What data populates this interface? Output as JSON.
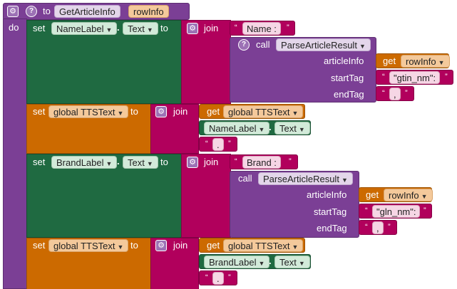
{
  "colors": {
    "procedure": "#7b3f95",
    "text_block": "#b1005c",
    "component": "#1f6a41",
    "variable": "#cc6a00"
  },
  "proc": {
    "to": "to",
    "name": "GetArticleInfo",
    "param": "rowInfo",
    "do": "do",
    "gear_icon": "gear-icon",
    "help_icon": "question-mark-icon"
  },
  "set1": {
    "set": "set",
    "component": "NameLabel",
    "property": "Text",
    "to": "to",
    "join": "join",
    "str1": "Name :",
    "call": "call",
    "proc": "ParseArticleResult",
    "p1": "articleInfo",
    "p2": "startTag",
    "p3": "endTag",
    "get": "get",
    "get_var": "rowInfo",
    "start_tag": "\"gtin_nm\":",
    "end_tag": ","
  },
  "set2": {
    "set": "set",
    "var": "global TTSText",
    "to": "to",
    "join": "join",
    "get": "get",
    "get_var": "global TTSText",
    "component": "NameLabel",
    "property": "Text",
    "str": "."
  },
  "set3": {
    "set": "set",
    "component": "BrandLabel",
    "property": "Text",
    "to": "to",
    "join": "join",
    "str1": "Brand :",
    "call": "call",
    "proc": "ParseArticleResult",
    "p1": "articleInfo",
    "p2": "startTag",
    "p3": "endTag",
    "get": "get",
    "get_var": "rowInfo",
    "start_tag": "\"gln_nm\":",
    "end_tag": ","
  },
  "set4": {
    "set": "set",
    "var": "global TTSText",
    "to": "to",
    "join": "join",
    "get": "get",
    "get_var": "global TTSText",
    "component": "BrandLabel",
    "property": "Text",
    "str": "."
  }
}
